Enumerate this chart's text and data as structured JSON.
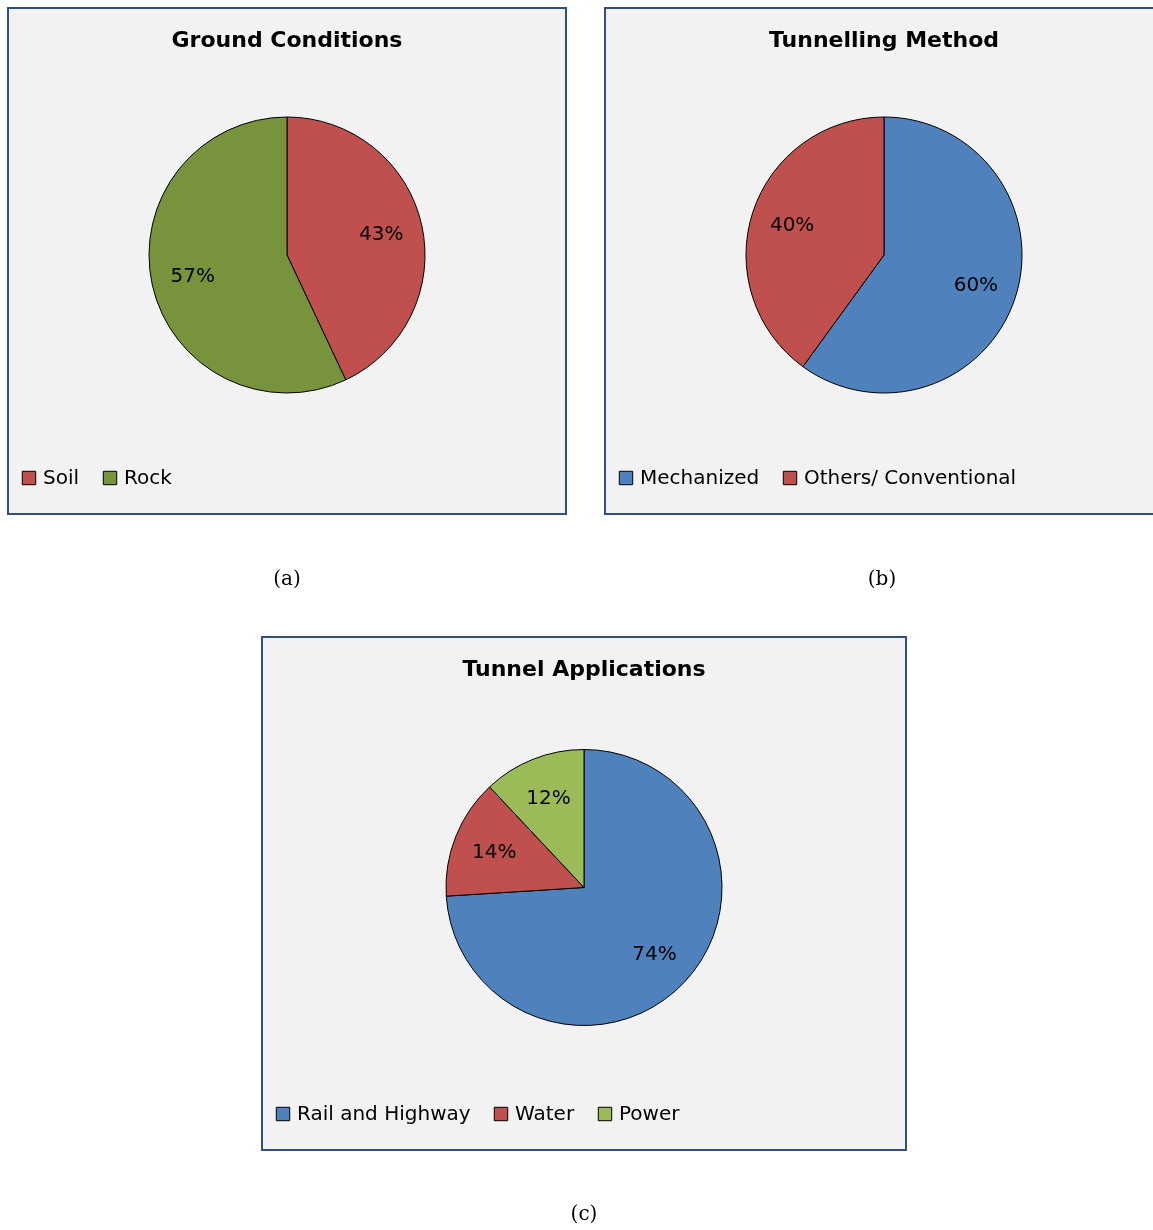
{
  "chart_data": [
    {
      "type": "pie",
      "title": "Ground Conditions",
      "categories": [
        "Soil",
        "Rock"
      ],
      "values": [
        43,
        57
      ],
      "colors": [
        "#c0504d",
        "#77933c"
      ],
      "value_labels": [
        "43%",
        "57%"
      ],
      "legend": "bottom",
      "annotations": [
        "(a)"
      ]
    },
    {
      "type": "pie",
      "title": "Tunnelling Method",
      "categories": [
        "Mechanized",
        "Others/ Conventional"
      ],
      "values": [
        60,
        40
      ],
      "colors": [
        "#4f81bd",
        "#c0504d"
      ],
      "value_labels": [
        "60%",
        "40%"
      ],
      "legend": "bottom",
      "annotations": [
        "(b)"
      ]
    },
    {
      "type": "pie",
      "title": "Tunnel Applications",
      "categories": [
        "Rail and Highway",
        "Water",
        "Power"
      ],
      "values": [
        74,
        14,
        12
      ],
      "colors": [
        "#4f81bd",
        "#c0504d",
        "#9bbb59"
      ],
      "value_labels": [
        "74%",
        "14%",
        "12%"
      ],
      "legend": "bottom",
      "annotations": [
        "(c)"
      ]
    }
  ]
}
